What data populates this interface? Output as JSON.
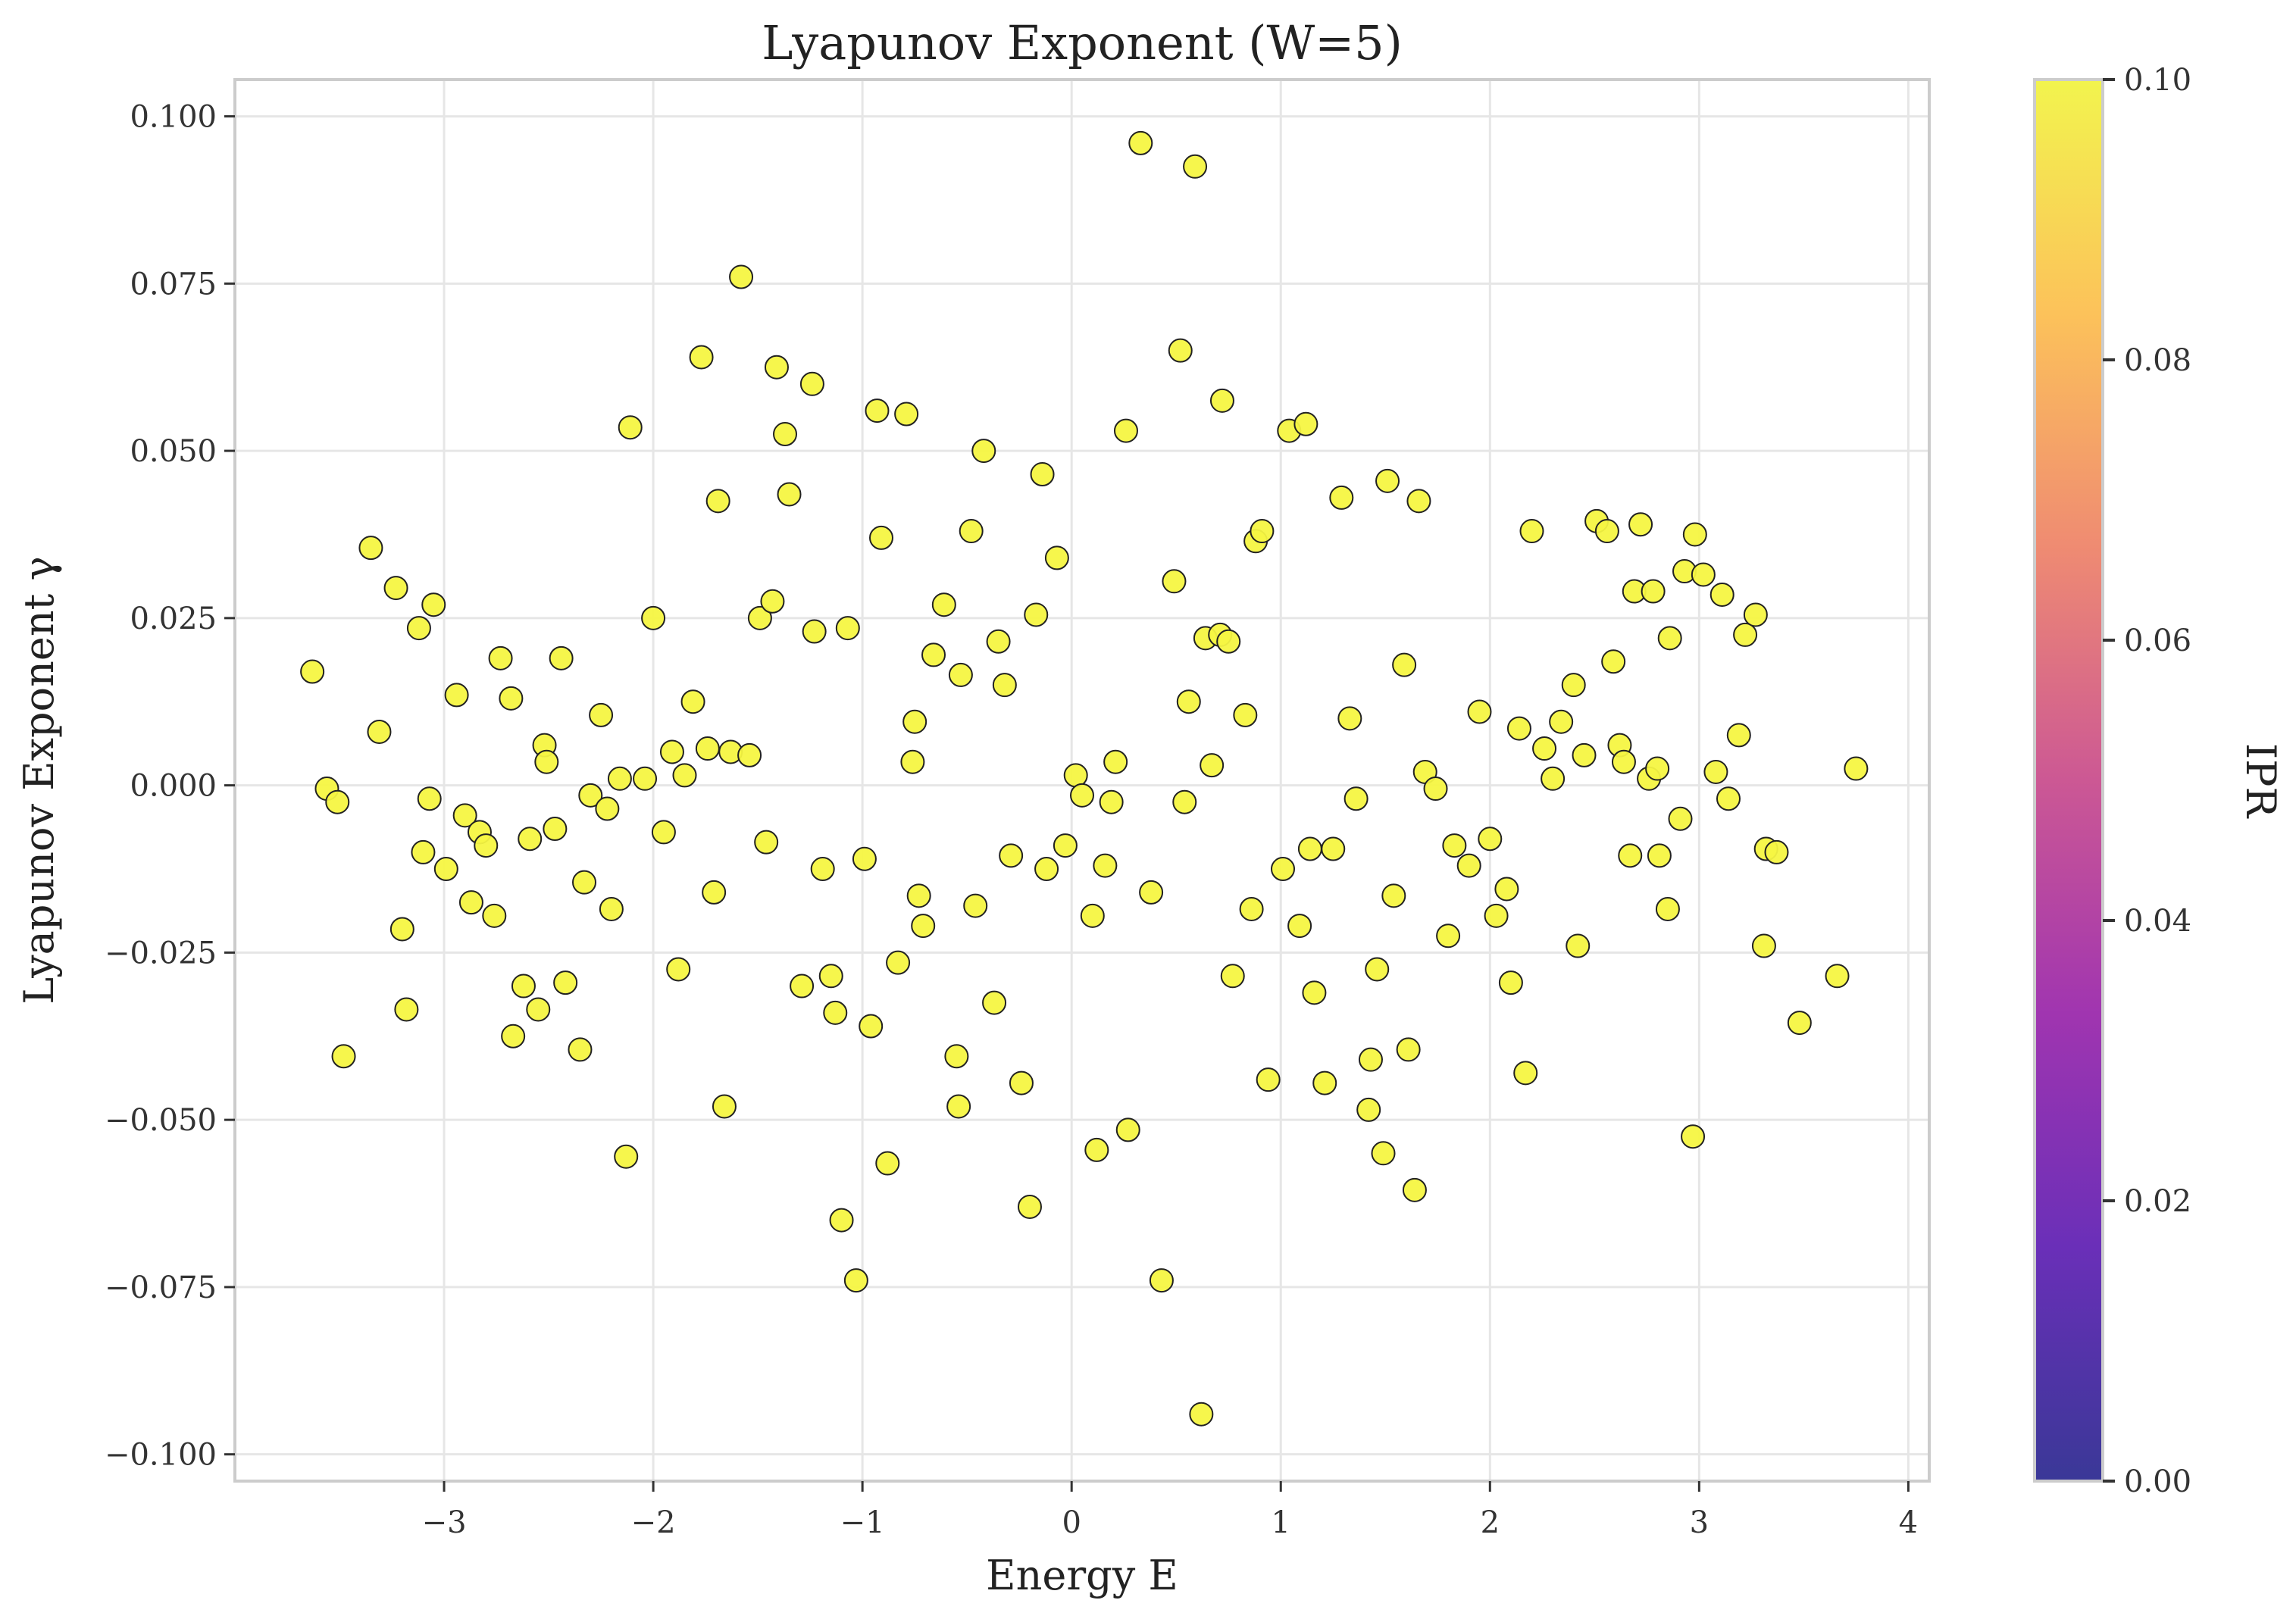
{
  "chart_data": {
    "type": "scatter",
    "title": "Lyapunov Exponent (W=5)",
    "xlabel": "Energy E",
    "ylabel": "Lyapunov Exponent γ",
    "xlim": [
      -4.0,
      4.1
    ],
    "ylim": [
      -0.104,
      0.1055
    ],
    "xticks": [
      -3,
      -2,
      -1,
      0,
      1,
      2,
      3,
      4
    ],
    "xtick_labels": [
      "−3",
      "−2",
      "−1",
      "0",
      "1",
      "2",
      "3",
      "4"
    ],
    "yticks": [
      -0.1,
      -0.075,
      -0.05,
      -0.025,
      0.0,
      0.025,
      0.05,
      0.075,
      0.1
    ],
    "ytick_labels": [
      "−0.100",
      "−0.075",
      "−0.050",
      "−0.025",
      "0.000",
      "0.025",
      "0.050",
      "0.075",
      "0.100"
    ],
    "grid": true,
    "marker_fill": "#f5f542",
    "marker_edge": "#222222",
    "colorbar": {
      "label": "IPR",
      "range": [
        0.0,
        0.1
      ],
      "ticks": [
        0.0,
        0.02,
        0.04,
        0.06,
        0.08,
        0.1
      ],
      "tick_labels": [
        "0.00",
        "0.02",
        "0.04",
        "0.06",
        "0.08",
        "0.10"
      ],
      "colormap": "plasma",
      "stops": [
        "#3a3897",
        "#6a2fb8",
        "#a035b0",
        "#cc5894",
        "#ef8b72",
        "#fcc25a",
        "#f2f44e"
      ]
    },
    "series": [
      {
        "points": [
          [
            -3.63,
            0.017
          ],
          [
            -3.56,
            -0.0005
          ],
          [
            -3.51,
            -0.0025
          ],
          [
            -3.48,
            -0.0405
          ],
          [
            -3.35,
            0.0355
          ],
          [
            -3.31,
            0.008
          ],
          [
            -3.23,
            0.0295
          ],
          [
            -3.2,
            -0.0215
          ],
          [
            -3.18,
            -0.0335
          ],
          [
            -3.12,
            0.0235
          ],
          [
            -3.1,
            -0.01
          ],
          [
            -3.07,
            -0.002
          ],
          [
            -3.05,
            0.027
          ],
          [
            -2.99,
            -0.0125
          ],
          [
            -2.94,
            0.0135
          ],
          [
            -2.9,
            -0.0045
          ],
          [
            -2.87,
            -0.0175
          ],
          [
            -2.83,
            -0.007
          ],
          [
            -2.8,
            -0.009
          ],
          [
            -2.76,
            -0.0195
          ],
          [
            -2.73,
            0.019
          ],
          [
            -2.68,
            0.013
          ],
          [
            -2.67,
            -0.0375
          ],
          [
            -2.62,
            -0.03
          ],
          [
            -2.59,
            -0.008
          ],
          [
            -2.55,
            -0.0335
          ],
          [
            -2.52,
            0.006
          ],
          [
            -2.51,
            0.0035
          ],
          [
            -2.47,
            -0.0065
          ],
          [
            -2.44,
            0.019
          ],
          [
            -2.42,
            -0.0295
          ],
          [
            -2.35,
            -0.0395
          ],
          [
            -2.33,
            -0.0145
          ],
          [
            -2.3,
            -0.0015
          ],
          [
            -2.25,
            0.0105
          ],
          [
            -2.22,
            -0.0035
          ],
          [
            -2.2,
            -0.0185
          ],
          [
            -2.16,
            0.001
          ],
          [
            -2.13,
            -0.0555
          ],
          [
            -2.11,
            0.0535
          ],
          [
            -2.04,
            0.001
          ],
          [
            -2.0,
            0.025
          ],
          [
            -1.95,
            -0.007
          ],
          [
            -1.91,
            0.005
          ],
          [
            -1.88,
            -0.0275
          ],
          [
            -1.85,
            0.0015
          ],
          [
            -1.81,
            0.0125
          ],
          [
            -1.77,
            0.064
          ],
          [
            -1.74,
            0.0055
          ],
          [
            -1.71,
            -0.016
          ],
          [
            -1.69,
            0.0425
          ],
          [
            -1.66,
            -0.048
          ],
          [
            -1.63,
            0.005
          ],
          [
            -1.58,
            0.076
          ],
          [
            -1.54,
            0.0045
          ],
          [
            -1.49,
            0.025
          ],
          [
            -1.46,
            -0.0085
          ],
          [
            -1.43,
            0.0275
          ],
          [
            -1.41,
            0.0625
          ],
          [
            -1.37,
            0.0525
          ],
          [
            -1.35,
            0.0435
          ],
          [
            -1.29,
            -0.03
          ],
          [
            -1.24,
            0.06
          ],
          [
            -1.23,
            0.023
          ],
          [
            -1.19,
            -0.0125
          ],
          [
            -1.15,
            -0.0285
          ],
          [
            -1.13,
            -0.034
          ],
          [
            -1.1,
            -0.065
          ],
          [
            -1.07,
            0.0235
          ],
          [
            -1.03,
            -0.074
          ],
          [
            -0.99,
            -0.011
          ],
          [
            -0.96,
            -0.036
          ],
          [
            -0.93,
            0.056
          ],
          [
            -0.91,
            0.037
          ],
          [
            -0.88,
            -0.0565
          ],
          [
            -0.83,
            -0.0265
          ],
          [
            -0.79,
            0.0555
          ],
          [
            -0.76,
            0.0035
          ],
          [
            -0.75,
            0.0095
          ],
          [
            -0.73,
            -0.0165
          ],
          [
            -0.71,
            -0.021
          ],
          [
            -0.66,
            0.0195
          ],
          [
            -0.61,
            0.027
          ],
          [
            -0.55,
            -0.0405
          ],
          [
            -0.54,
            -0.048
          ],
          [
            -0.53,
            0.0165
          ],
          [
            -0.48,
            0.038
          ],
          [
            -0.46,
            -0.018
          ],
          [
            -0.42,
            0.05
          ],
          [
            -0.37,
            -0.0325
          ],
          [
            -0.35,
            0.0215
          ],
          [
            -0.32,
            0.015
          ],
          [
            -0.29,
            -0.0105
          ],
          [
            -0.24,
            -0.0445
          ],
          [
            -0.2,
            -0.063
          ],
          [
            -0.17,
            0.0255
          ],
          [
            -0.14,
            0.0465
          ],
          [
            -0.12,
            -0.0125
          ],
          [
            -0.07,
            0.034
          ],
          [
            -0.03,
            -0.009
          ],
          [
            0.02,
            0.0015
          ],
          [
            0.05,
            -0.0015
          ],
          [
            0.1,
            -0.0195
          ],
          [
            0.12,
            -0.0545
          ],
          [
            0.16,
            -0.012
          ],
          [
            0.19,
            -0.0025
          ],
          [
            0.21,
            0.0035
          ],
          [
            0.26,
            0.053
          ],
          [
            0.27,
            -0.0515
          ],
          [
            0.33,
            0.096
          ],
          [
            0.38,
            -0.016
          ],
          [
            0.43,
            -0.074
          ],
          [
            0.49,
            0.0305
          ],
          [
            0.52,
            0.065
          ],
          [
            0.54,
            -0.0025
          ],
          [
            0.56,
            0.0125
          ],
          [
            0.59,
            0.0925
          ],
          [
            0.62,
            -0.094
          ],
          [
            0.64,
            0.022
          ],
          [
            0.67,
            0.003
          ],
          [
            0.71,
            0.0225
          ],
          [
            0.72,
            0.0575
          ],
          [
            0.75,
            0.0215
          ],
          [
            0.77,
            -0.0285
          ],
          [
            0.83,
            0.0105
          ],
          [
            0.86,
            -0.0185
          ],
          [
            0.88,
            0.0365
          ],
          [
            0.91,
            0.038
          ],
          [
            0.94,
            -0.044
          ],
          [
            1.01,
            -0.0125
          ],
          [
            1.04,
            0.053
          ],
          [
            1.09,
            -0.021
          ],
          [
            1.12,
            0.054
          ],
          [
            1.14,
            -0.0095
          ],
          [
            1.16,
            -0.031
          ],
          [
            1.21,
            -0.0445
          ],
          [
            1.25,
            -0.0095
          ],
          [
            1.29,
            0.043
          ],
          [
            1.33,
            0.01
          ],
          [
            1.36,
            -0.002
          ],
          [
            1.42,
            -0.0485
          ],
          [
            1.43,
            -0.041
          ],
          [
            1.46,
            -0.0275
          ],
          [
            1.49,
            -0.055
          ],
          [
            1.51,
            0.0455
          ],
          [
            1.54,
            -0.0165
          ],
          [
            1.59,
            0.018
          ],
          [
            1.61,
            -0.0395
          ],
          [
            1.64,
            -0.0605
          ],
          [
            1.66,
            0.0425
          ],
          [
            1.69,
            0.002
          ],
          [
            1.74,
            -0.0005
          ],
          [
            1.8,
            -0.0225
          ],
          [
            1.83,
            -0.009
          ],
          [
            1.9,
            -0.012
          ],
          [
            1.95,
            0.011
          ],
          [
            2.0,
            -0.008
          ],
          [
            2.03,
            -0.0195
          ],
          [
            2.08,
            -0.0155
          ],
          [
            2.1,
            -0.0295
          ],
          [
            2.14,
            0.0085
          ],
          [
            2.17,
            -0.043
          ],
          [
            2.2,
            0.038
          ],
          [
            2.26,
            0.0055
          ],
          [
            2.3,
            0.001
          ],
          [
            2.34,
            0.0095
          ],
          [
            2.4,
            0.015
          ],
          [
            2.42,
            -0.024
          ],
          [
            2.45,
            0.0045
          ],
          [
            2.51,
            0.0395
          ],
          [
            2.56,
            0.038
          ],
          [
            2.59,
            0.0185
          ],
          [
            2.62,
            0.006
          ],
          [
            2.64,
            0.0035
          ],
          [
            2.67,
            -0.0105
          ],
          [
            2.69,
            0.029
          ],
          [
            2.72,
            0.039
          ],
          [
            2.76,
            0.001
          ],
          [
            2.78,
            0.029
          ],
          [
            2.8,
            0.0025
          ],
          [
            2.81,
            -0.0105
          ],
          [
            2.85,
            -0.0185
          ],
          [
            2.86,
            0.022
          ],
          [
            2.91,
            -0.005
          ],
          [
            2.93,
            0.032
          ],
          [
            2.97,
            -0.0525
          ],
          [
            2.98,
            0.0375
          ],
          [
            3.02,
            0.0315
          ],
          [
            3.08,
            0.002
          ],
          [
            3.11,
            0.0285
          ],
          [
            3.14,
            -0.002
          ],
          [
            3.19,
            0.0075
          ],
          [
            3.22,
            0.0225
          ],
          [
            3.27,
            0.0255
          ],
          [
            3.31,
            -0.024
          ],
          [
            3.32,
            -0.0095
          ],
          [
            3.37,
            -0.01
          ],
          [
            3.48,
            -0.0355
          ],
          [
            3.66,
            -0.0285
          ],
          [
            3.75,
            0.0025
          ]
        ]
      }
    ]
  }
}
